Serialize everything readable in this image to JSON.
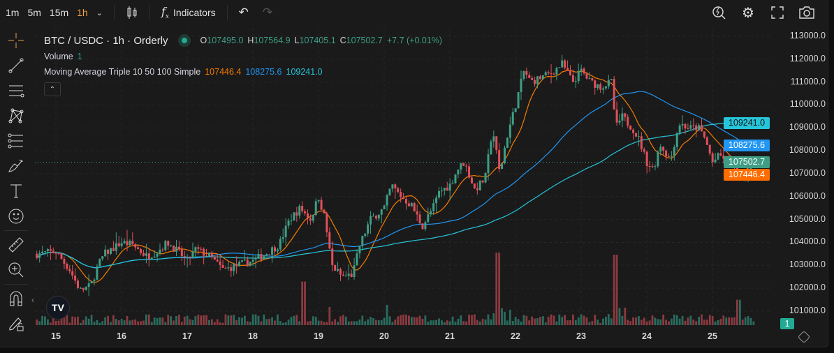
{
  "toolbar": {
    "timeframes": [
      "1m",
      "5m",
      "15m",
      "1h"
    ],
    "active": "1h",
    "indicators_label": "Indicators"
  },
  "legend": {
    "symbol": "BTC / USDC · 1h · Orderly",
    "o_label": "O",
    "o": "107495.0",
    "h_label": "H",
    "h": "107564.9",
    "l_label": "L",
    "l": "107405.1",
    "c_label": "C",
    "c": "107502.7",
    "change": "+7.7 (+0.01%)",
    "volume_label": "Volume",
    "volume_value": "1",
    "ma_label": "Moving Average Triple 10 50 100 Simple",
    "ma10": "107446.4",
    "ma50": "108275.6",
    "ma100": "109241.0"
  },
  "price_axis": [
    "113000.0",
    "112000.0",
    "111000.0",
    "110000.0",
    "109000.0",
    "108000.0",
    "107000.0",
    "106000.0",
    "105000.0",
    "104000.0",
    "103000.0",
    "102000.0",
    "101000.0"
  ],
  "tags": {
    "ma100": "109241.0",
    "ma50": "108275.6",
    "last": "107502.7",
    "ma10": "107446.4",
    "volume": "1"
  },
  "colors": {
    "up": "#3e9e85",
    "down": "#e0505a",
    "ma10": "#f57c00",
    "ma50": "#2196f3",
    "ma100": "#26c6da",
    "bg": "#1a1a1a"
  },
  "chart_data": {
    "type": "candlestick",
    "title": "BTC / USDC · 1h · Orderly",
    "x_ticks": [
      "15",
      "16",
      "17",
      "18",
      "19",
      "20",
      "21",
      "22",
      "23",
      "24",
      "25"
    ],
    "ylim": [
      100500,
      113500
    ],
    "close_keypoints_day_price": [
      [
        14.71,
        103500
      ],
      [
        15,
        103600
      ],
      [
        15.21,
        102800
      ],
      [
        15.37,
        101900
      ],
      [
        15.53,
        102100
      ],
      [
        15.64,
        103000
      ],
      [
        15.74,
        103500
      ],
      [
        15.9,
        103800
      ],
      [
        16,
        104000
      ],
      [
        16.17,
        103900
      ],
      [
        16.38,
        103400
      ],
      [
        16.54,
        103600
      ],
      [
        16.7,
        104000
      ],
      [
        16.86,
        103600
      ],
      [
        17,
        103200
      ],
      [
        17.13,
        103700
      ],
      [
        17.34,
        103400
      ],
      [
        17.55,
        102800
      ],
      [
        17.77,
        103000
      ],
      [
        18,
        103200
      ],
      [
        18.19,
        103500
      ],
      [
        18.4,
        103900
      ],
      [
        18.56,
        105000
      ],
      [
        18.72,
        105500
      ],
      [
        18.88,
        105000
      ],
      [
        19,
        106000
      ],
      [
        19.1,
        105000
      ],
      [
        19.2,
        103000
      ],
      [
        19.36,
        102500
      ],
      [
        19.52,
        102600
      ],
      [
        19.63,
        103900
      ],
      [
        19.79,
        105000
      ],
      [
        20,
        105500
      ],
      [
        20.11,
        106500
      ],
      [
        20.26,
        106000
      ],
      [
        20.42,
        105600
      ],
      [
        20.58,
        104700
      ],
      [
        20.74,
        105500
      ],
      [
        20.84,
        106200
      ],
      [
        21,
        106500
      ],
      [
        21.12,
        107200
      ],
      [
        21.22,
        107500
      ],
      [
        21.38,
        106300
      ],
      [
        21.54,
        106800
      ],
      [
        21.65,
        109000
      ],
      [
        21.76,
        107000
      ],
      [
        21.86,
        108500
      ],
      [
        22,
        110000
      ],
      [
        22.13,
        111500
      ],
      [
        22.23,
        111000
      ],
      [
        22.39,
        111200
      ],
      [
        22.55,
        111400
      ],
      [
        22.71,
        111800
      ],
      [
        22.87,
        111000
      ],
      [
        23,
        111500
      ],
      [
        23.14,
        111000
      ],
      [
        23.3,
        110800
      ],
      [
        23.46,
        111000
      ],
      [
        23.53,
        109000
      ],
      [
        23.62,
        109500
      ],
      [
        23.78,
        109000
      ],
      [
        23.88,
        108500
      ],
      [
        24,
        107500
      ],
      [
        24.1,
        107200
      ],
      [
        24.2,
        108300
      ],
      [
        24.36,
        107600
      ],
      [
        24.49,
        109200
      ],
      [
        24.63,
        109000
      ],
      [
        24.79,
        109000
      ],
      [
        24.89,
        108500
      ],
      [
        25,
        107500
      ],
      [
        25.11,
        107800
      ],
      [
        25.27,
        107500
      ],
      [
        25.4,
        106800
      ],
      [
        25.51,
        107000
      ],
      [
        25.62,
        107502.7
      ]
    ],
    "last_candle": {
      "open": 107495.0,
      "high": 107564.9,
      "low": 107405.1,
      "close": 107502.7
    },
    "volume_spikes_day_relative": [
      [
        18.77,
        60
      ],
      [
        19.18,
        25
      ],
      [
        20.05,
        28
      ],
      [
        21.73,
        100
      ],
      [
        23.53,
        97
      ],
      [
        25.4,
        35
      ]
    ],
    "series": [
      {
        "name": "MA 10",
        "last": 107446.4
      },
      {
        "name": "MA 50",
        "last": 108275.6
      },
      {
        "name": "MA 100",
        "last": 109241.0
      }
    ]
  }
}
